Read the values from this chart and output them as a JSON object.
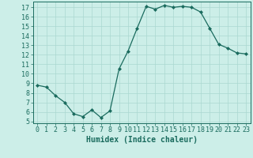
{
  "x": [
    0,
    1,
    2,
    3,
    4,
    5,
    6,
    7,
    8,
    9,
    10,
    11,
    12,
    13,
    14,
    15,
    16,
    17,
    18,
    19,
    20,
    21,
    22,
    23
  ],
  "y": [
    8.8,
    8.6,
    7.7,
    7.0,
    5.8,
    5.5,
    6.2,
    5.4,
    6.1,
    10.5,
    12.4,
    14.8,
    17.1,
    16.8,
    17.2,
    17.0,
    17.1,
    17.0,
    16.5,
    14.8,
    13.1,
    12.7,
    12.2,
    12.1
  ],
  "line_color": "#1a6b5e",
  "marker": "D",
  "marker_size": 2.0,
  "bg_color": "#cceee8",
  "grid_color": "#aad8d0",
  "xlabel": "Humidex (Indice chaleur)",
  "ylim": [
    4.8,
    17.6
  ],
  "xlim": [
    -0.5,
    23.5
  ],
  "yticks": [
    5,
    6,
    7,
    8,
    9,
    10,
    11,
    12,
    13,
    14,
    15,
    16,
    17
  ],
  "xticks": [
    0,
    1,
    2,
    3,
    4,
    5,
    6,
    7,
    8,
    9,
    10,
    11,
    12,
    13,
    14,
    15,
    16,
    17,
    18,
    19,
    20,
    21,
    22,
    23
  ],
  "tick_color": "#1a6b5e",
  "label_fontsize": 7,
  "tick_fontsize": 6,
  "linewidth": 0.9
}
